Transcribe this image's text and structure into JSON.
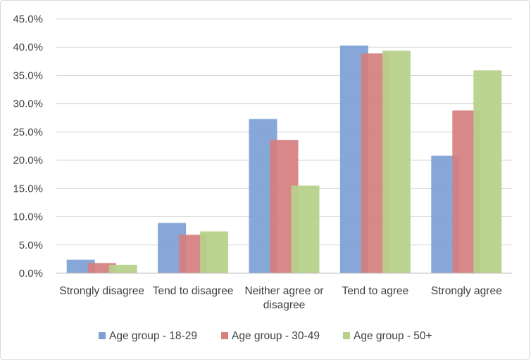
{
  "chart_data": {
    "type": "bar",
    "title": "",
    "xlabel": "",
    "ylabel": "",
    "categories": [
      [
        "Strongly disagree"
      ],
      [
        "Tend to disagree"
      ],
      [
        "Neither agree or",
        "disagree"
      ],
      [
        "Tend to agree"
      ],
      [
        "Strongly agree"
      ]
    ],
    "series": [
      {
        "name": "Age group - 18-29",
        "color": "#7da0d4",
        "values": [
          2.4,
          8.9,
          27.3,
          40.3,
          20.8
        ]
      },
      {
        "name": "Age group - 30-49",
        "color": "#d57f7f",
        "values": [
          1.8,
          6.8,
          23.6,
          38.9,
          28.8
        ]
      },
      {
        "name": "Age group - 50+",
        "color": "#b7d18a",
        "values": [
          1.5,
          7.4,
          15.5,
          39.4,
          35.9
        ]
      }
    ],
    "ylim": [
      0,
      45
    ],
    "yticks": [
      "0.0%",
      "5.0%",
      "10.0%",
      "15.0%",
      "20.0%",
      "25.0%",
      "30.0%",
      "35.0%",
      "40.0%",
      "45.0%"
    ],
    "grid": true,
    "legend_position": "bottom"
  }
}
